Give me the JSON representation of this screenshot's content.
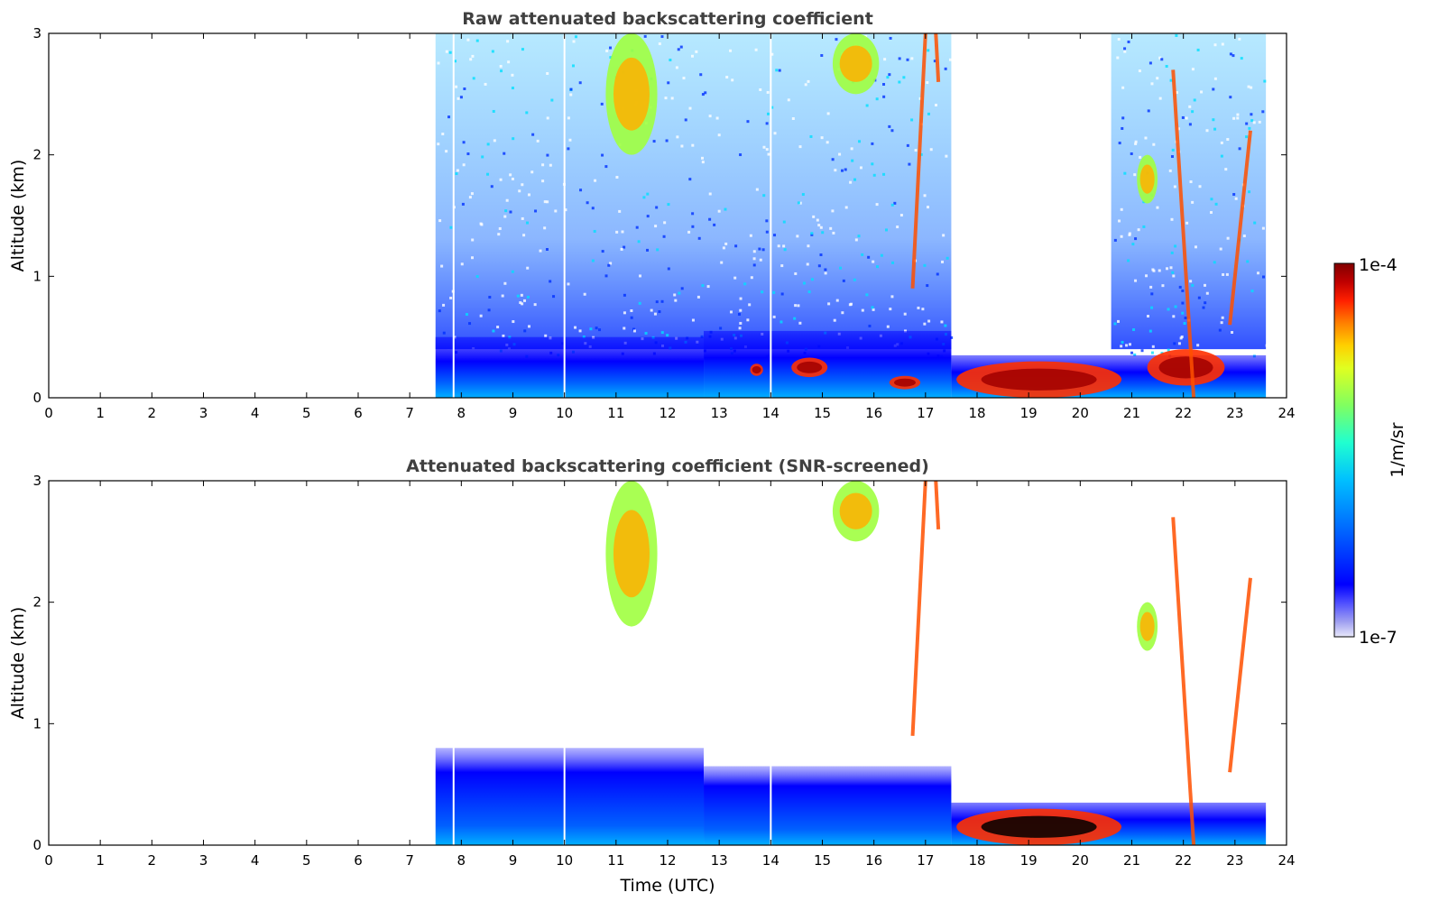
{
  "chart_data": [
    {
      "type": "heatmap",
      "title": "Raw attenuated backscattering coefficient",
      "xlabel": "",
      "ylabel": "Altitude (km)",
      "xlim": [
        0,
        24
      ],
      "ylim": [
        0,
        3
      ],
      "xticks": [
        "0",
        "1",
        "2",
        "3",
        "4",
        "5",
        "6",
        "7",
        "8",
        "9",
        "10",
        "11",
        "12",
        "13",
        "14",
        "15",
        "16",
        "17",
        "18",
        "19",
        "20",
        "21",
        "22",
        "23",
        "24"
      ],
      "yticks": [
        "0",
        "1",
        "2",
        "3"
      ],
      "data_start_time": 7.5,
      "data_end_time": 23.6,
      "features": [
        {
          "kind": "boundary_layer",
          "t0": 7.5,
          "t1": 12.7,
          "top_km": 0.5
        },
        {
          "kind": "boundary_layer",
          "t0": 12.7,
          "t1": 17.5,
          "top_km": 0.55
        },
        {
          "kind": "cloud",
          "t0": 10.8,
          "t1": 11.8,
          "z0": 2.0,
          "z1": 3.0
        },
        {
          "kind": "cloud",
          "t0": 15.2,
          "t1": 16.1,
          "z0": 2.5,
          "z1": 3.0
        },
        {
          "kind": "cloud",
          "t0": 13.6,
          "t1": 13.85,
          "z0": 0.18,
          "z1": 0.28
        },
        {
          "kind": "cloud",
          "t0": 14.4,
          "t1": 15.1,
          "z0": 0.17,
          "z1": 0.33
        },
        {
          "kind": "cloud",
          "t0": 16.3,
          "t1": 16.9,
          "z0": 0.07,
          "z1": 0.18
        },
        {
          "kind": "cloud",
          "t0": 17.6,
          "t1": 20.8,
          "z0": 0.0,
          "z1": 0.3
        },
        {
          "kind": "cloud",
          "t0": 21.1,
          "t1": 21.5,
          "z0": 1.6,
          "z1": 2.0
        },
        {
          "kind": "cloud",
          "t0": 21.3,
          "t1": 22.8,
          "z0": 0.1,
          "z1": 0.4
        }
      ]
    },
    {
      "type": "heatmap",
      "title": "Attenuated backscattering coefficient (SNR-screened)",
      "xlabel": "Time (UTC)",
      "ylabel": "Altitude (km)",
      "xlim": [
        0,
        24
      ],
      "ylim": [
        0,
        3
      ],
      "xticks": [
        "0",
        "1",
        "2",
        "3",
        "4",
        "5",
        "6",
        "7",
        "8",
        "9",
        "10",
        "11",
        "12",
        "13",
        "14",
        "15",
        "16",
        "17",
        "18",
        "19",
        "20",
        "21",
        "22",
        "23",
        "24"
      ],
      "yticks": [
        "0",
        "1",
        "2",
        "3"
      ],
      "data_start_time": 7.5,
      "data_end_time": 23.6,
      "features": [
        {
          "kind": "boundary_layer",
          "t0": 7.5,
          "t1": 12.7,
          "top_km": 0.8
        },
        {
          "kind": "boundary_layer",
          "t0": 12.7,
          "t1": 17.5,
          "top_km": 0.65
        },
        {
          "kind": "cloud",
          "t0": 10.8,
          "t1": 11.8,
          "z0": 1.8,
          "z1": 3.0
        },
        {
          "kind": "cloud",
          "t0": 15.2,
          "t1": 16.1,
          "z0": 2.5,
          "z1": 3.0
        },
        {
          "kind": "cloud",
          "t0": 17.6,
          "t1": 20.8,
          "z0": 0.0,
          "z1": 0.3
        },
        {
          "kind": "cloud",
          "t0": 21.1,
          "t1": 21.5,
          "z0": 1.6,
          "z1": 2.0
        }
      ]
    }
  ],
  "colorbar": {
    "label": "1/m/sr",
    "max_label": "1e-4",
    "min_label": "1e-7",
    "scale": "log",
    "colormap": "jet",
    "colors": [
      "#e8e8fa",
      "#a0a0f0",
      "#5050ff",
      "#0000ff",
      "#0070ff",
      "#00c0ff",
      "#20ffd0",
      "#80ff60",
      "#e0ff20",
      "#ffd000",
      "#ff8000",
      "#ff2000",
      "#c00000",
      "#800000"
    ]
  }
}
